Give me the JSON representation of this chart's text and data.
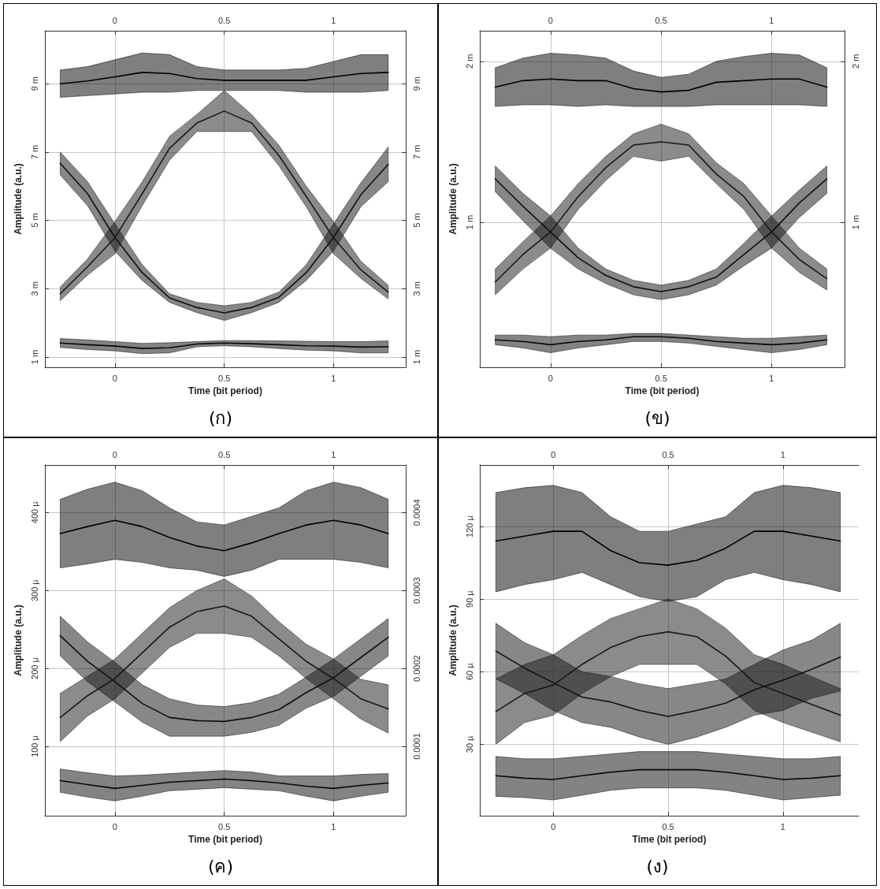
{
  "chart_data": [
    {
      "type": "line",
      "title": "(ก)",
      "xlabel": "Time (bit period)",
      "ylabel": "Amplitude (a.u.)",
      "grid": true,
      "marker": "none",
      "x": [
        -0.25,
        -0.125,
        0,
        0.125,
        0.25,
        0.375,
        0.5,
        0.625,
        0.75,
        0.875,
        1,
        1.125,
        1.25
      ],
      "xlim": [
        -0.32,
        1.33
      ],
      "xticks": [
        0,
        0.5,
        1
      ],
      "x2lim": [
        -0.32,
        1.33
      ],
      "x2ticks": [
        0,
        0.5,
        1
      ],
      "ylim": [
        0.7,
        10.55
      ],
      "yticks": [
        {
          "value": 1,
          "label": "1 m"
        },
        {
          "value": 3,
          "label": "3 m"
        },
        {
          "value": 5,
          "label": "5 m"
        },
        {
          "value": 7,
          "label": "7 m"
        },
        {
          "value": 9,
          "label": "9 m"
        }
      ],
      "y2lim": [
        0.7,
        10.55
      ],
      "y2ticks": [
        {
          "value": 1,
          "label": "1 m"
        },
        {
          "value": 3,
          "label": "3 m"
        },
        {
          "value": 5,
          "label": "5 m"
        },
        {
          "value": 7,
          "label": "7 m"
        },
        {
          "value": 9,
          "label": "9 m"
        }
      ],
      "series": [
        {
          "color": "#000000",
          "values": [
            9.0,
            9.08,
            9.2,
            9.33,
            9.3,
            9.15,
            9.1,
            9.1,
            9.1,
            9.1,
            9.2,
            9.3,
            9.33
          ],
          "lower": [
            8.6,
            8.65,
            8.7,
            8.75,
            8.75,
            8.8,
            8.8,
            8.8,
            8.8,
            8.75,
            8.75,
            8.75,
            8.8
          ],
          "upper": [
            9.4,
            9.5,
            9.7,
            9.9,
            9.85,
            9.5,
            9.4,
            9.4,
            9.4,
            9.45,
            9.65,
            9.85,
            9.85
          ]
        },
        {
          "color": "#080808",
          "values": [
            1.41,
            1.36,
            1.32,
            1.25,
            1.27,
            1.38,
            1.41,
            1.39,
            1.36,
            1.33,
            1.32,
            1.29,
            1.3
          ],
          "lower": [
            1.28,
            1.22,
            1.18,
            1.1,
            1.12,
            1.3,
            1.33,
            1.3,
            1.25,
            1.2,
            1.18,
            1.12,
            1.12
          ],
          "upper": [
            1.54,
            1.5,
            1.45,
            1.4,
            1.42,
            1.45,
            1.48,
            1.48,
            1.47,
            1.46,
            1.45,
            1.45,
            1.47
          ]
        },
        {
          "color": "#101010",
          "values": [
            6.67,
            5.78,
            4.5,
            3.47,
            2.73,
            2.45,
            2.29,
            2.45,
            2.75,
            3.47,
            4.5,
            5.75,
            6.64
          ],
          "lower": [
            6.33,
            5.43,
            4.1,
            3.24,
            2.6,
            2.3,
            2.07,
            2.3,
            2.6,
            3.24,
            4.1,
            5.4,
            6.13
          ],
          "upper": [
            7.0,
            6.13,
            4.9,
            3.7,
            2.85,
            2.6,
            2.5,
            2.6,
            2.9,
            3.7,
            4.9,
            6.1,
            7.15
          ]
        },
        {
          "color": "#181818",
          "values": [
            2.85,
            3.64,
            4.49,
            5.78,
            7.11,
            7.85,
            8.2,
            7.85,
            6.9,
            5.7,
            4.49,
            3.55,
            2.9
          ],
          "lower": [
            2.65,
            3.4,
            4.02,
            5.43,
            6.76,
            7.6,
            7.6,
            7.6,
            6.6,
            5.4,
            4.02,
            3.3,
            2.7
          ],
          "upper": [
            3.05,
            3.87,
            4.96,
            6.13,
            7.46,
            8.1,
            8.8,
            8.1,
            7.2,
            6.0,
            4.96,
            3.8,
            3.1
          ]
        }
      ]
    },
    {
      "type": "line",
      "title": "(ข)",
      "xlabel": "Time (bit period)",
      "ylabel": "Amplitude (a.u.)",
      "grid": true,
      "marker": "none",
      "x": [
        -0.25,
        -0.125,
        0,
        0.125,
        0.25,
        0.375,
        0.5,
        0.625,
        0.75,
        0.875,
        1,
        1.125,
        1.25
      ],
      "xlim": [
        -0.32,
        1.33
      ],
      "xticks": [
        0,
        0.5,
        1
      ],
      "x2lim": [
        -0.32,
        1.33
      ],
      "x2ticks": [
        0,
        0.5,
        1
      ],
      "ylim": [
        0.1,
        2.19
      ],
      "yticks": [
        {
          "value": 1,
          "label": "1 m"
        },
        {
          "value": 2,
          "label": "2 m"
        }
      ],
      "y2lim": [
        0.1,
        2.19
      ],
      "y2ticks": [
        {
          "value": 1,
          "label": "1 m"
        },
        {
          "value": 2,
          "label": "2 m"
        }
      ],
      "series": [
        {
          "color": "#000000",
          "values": [
            1.84,
            1.88,
            1.89,
            1.88,
            1.88,
            1.83,
            1.81,
            1.82,
            1.87,
            1.88,
            1.89,
            1.89,
            1.84
          ],
          "lower": [
            1.72,
            1.73,
            1.73,
            1.72,
            1.73,
            1.72,
            1.72,
            1.72,
            1.73,
            1.73,
            1.73,
            1.73,
            1.72
          ],
          "upper": [
            1.96,
            2.02,
            2.05,
            2.04,
            2.02,
            1.94,
            1.9,
            1.92,
            2.0,
            2.03,
            2.05,
            2.04,
            1.96
          ]
        },
        {
          "color": "#080808",
          "values": [
            0.27,
            0.26,
            0.24,
            0.26,
            0.27,
            0.29,
            0.29,
            0.28,
            0.26,
            0.25,
            0.24,
            0.25,
            0.27
          ],
          "lower": [
            0.24,
            0.22,
            0.19,
            0.22,
            0.24,
            0.26,
            0.26,
            0.25,
            0.23,
            0.21,
            0.19,
            0.21,
            0.24
          ],
          "upper": [
            0.3,
            0.3,
            0.29,
            0.3,
            0.3,
            0.31,
            0.31,
            0.3,
            0.29,
            0.28,
            0.28,
            0.29,
            0.3
          ]
        },
        {
          "color": "#101010",
          "values": [
            1.27,
            1.1,
            0.94,
            0.78,
            0.67,
            0.6,
            0.57,
            0.6,
            0.66,
            0.8,
            0.94,
            1.12,
            1.27
          ],
          "lower": [
            1.19,
            1.01,
            0.84,
            0.71,
            0.62,
            0.55,
            0.52,
            0.55,
            0.61,
            0.73,
            0.84,
            1.03,
            1.18
          ],
          "upper": [
            1.35,
            1.18,
            1.04,
            0.84,
            0.71,
            0.64,
            0.61,
            0.64,
            0.71,
            0.87,
            1.04,
            1.2,
            1.35
          ]
        },
        {
          "color": "#181818",
          "values": [
            0.63,
            0.8,
            0.94,
            1.16,
            1.34,
            1.48,
            1.5,
            1.48,
            1.3,
            1.16,
            0.94,
            0.77,
            0.65
          ],
          "lower": [
            0.55,
            0.71,
            0.84,
            1.08,
            1.26,
            1.41,
            1.38,
            1.41,
            1.24,
            1.08,
            0.84,
            0.69,
            0.58
          ],
          "upper": [
            0.71,
            0.88,
            1.04,
            1.24,
            1.41,
            1.55,
            1.61,
            1.55,
            1.37,
            1.24,
            1.04,
            0.84,
            0.71
          ]
        }
      ]
    },
    {
      "type": "line",
      "title": "(ค)",
      "xlabel": "Time (bit period)",
      "ylabel": "Amplitude (a.u.)",
      "grid": true,
      "marker": "none",
      "x": [
        -0.25,
        -0.125,
        0,
        0.125,
        0.25,
        0.375,
        0.5,
        0.625,
        0.75,
        0.875,
        1,
        1.125,
        1.25
      ],
      "xlim": [
        -0.32,
        1.33
      ],
      "xticks": [
        0,
        0.5,
        1
      ],
      "x2lim": [
        -0.32,
        1.33
      ],
      "x2ticks": [
        0,
        0.5,
        1
      ],
      "ylim": [
        11,
        461
      ],
      "yticks": [
        {
          "value": 100,
          "label": "100 µ"
        },
        {
          "value": 200,
          "label": "200 µ"
        },
        {
          "value": 300,
          "label": "300 µ"
        },
        {
          "value": 400,
          "label": "400 µ"
        }
      ],
      "y2lim": [
        1.1e-05,
        0.000461
      ],
      "y2ticks": [
        0.0001,
        0.0002,
        0.0003,
        0.0004
      ],
      "series": [
        {
          "color": "#000000",
          "values": [
            373,
            382,
            390,
            382,
            368,
            357,
            351,
            361,
            373,
            384,
            390,
            384,
            373
          ],
          "lower": [
            329,
            334,
            340,
            336,
            329,
            326,
            318,
            326,
            340,
            340,
            340,
            336,
            329
          ],
          "upper": [
            417,
            430,
            439,
            428,
            406,
            388,
            384,
            395,
            406,
            428,
            439,
            432,
            417
          ]
        },
        {
          "color": "#080808",
          "values": [
            56,
            51,
            46,
            50,
            54,
            56,
            58,
            56,
            53,
            49,
            46,
            50,
            53
          ],
          "lower": [
            41,
            35,
            30,
            36,
            43,
            45,
            47,
            45,
            43,
            36,
            30,
            36,
            41
          ],
          "upper": [
            71,
            66,
            62,
            63,
            65,
            67,
            69,
            67,
            62,
            62,
            62,
            64,
            65
          ]
        },
        {
          "color": "#101010",
          "values": [
            242,
            209,
            183,
            155,
            137,
            133,
            132,
            137,
            147,
            169,
            188,
            214,
            240
          ],
          "lower": [
            216,
            183,
            157,
            131,
            113,
            113,
            113,
            118,
            127,
            149,
            164,
            190,
            216
          ],
          "upper": [
            267,
            234,
            208,
            179,
            161,
            153,
            151,
            156,
            167,
            189,
            212,
            238,
            264
          ]
        },
        {
          "color": "#181818",
          "values": [
            137,
            165,
            187,
            220,
            253,
            273,
            280,
            267,
            238,
            209,
            187,
            161,
            148
          ],
          "lower": [
            106,
            139,
            161,
            194,
            227,
            245,
            245,
            240,
            216,
            187,
            161,
            135,
            117
          ],
          "upper": [
            168,
            190,
            212,
            245,
            278,
            300,
            315,
            293,
            260,
            231,
            212,
            186,
            179
          ]
        }
      ]
    },
    {
      "type": "line",
      "title": "(ง)",
      "xlabel": "Time (bit period)",
      "ylabel": "Amplitude (a.u.)",
      "grid": true,
      "marker": "none",
      "x": [
        -0.25,
        -0.125,
        0,
        0.125,
        0.25,
        0.375,
        0.5,
        0.625,
        0.75,
        0.875,
        1,
        1.125,
        1.25
      ],
      "xlim": [
        -0.32,
        1.33
      ],
      "xticks": [
        0,
        0.5,
        1
      ],
      "x2lim": [
        -0.32,
        1.33
      ],
      "x2ticks": [
        0,
        0.5,
        1
      ],
      "ylim": [
        0.5,
        145.4
      ],
      "yticks": [
        {
          "value": 30,
          "label": "30 µ"
        },
        {
          "value": 60,
          "label": "60 µ"
        },
        {
          "value": 90,
          "label": "90 µ"
        },
        {
          "value": 120,
          "label": "120 µ"
        }
      ],
      "series": [
        {
          "color": "#000000",
          "values": [
            114,
            116,
            118,
            118,
            110,
            105,
            104,
            106,
            111,
            118,
            118,
            116,
            114
          ],
          "lower": [
            93,
            96,
            98,
            101,
            96,
            91,
            89,
            91,
            98,
            101,
            98,
            96,
            93
          ],
          "upper": [
            134,
            136,
            137,
            134,
            124,
            118,
            118,
            121,
            124,
            134,
            137,
            136,
            134
          ]
        },
        {
          "color": "#080808",
          "values": [
            17,
            16,
            15.5,
            17,
            18.5,
            19.5,
            19.5,
            19.5,
            18.5,
            17,
            15.5,
            16,
            17
          ],
          "lower": [
            8.5,
            8,
            7,
            9,
            11,
            12,
            12,
            12,
            11,
            9,
            7,
            8,
            9
          ],
          "upper": [
            25,
            24,
            24,
            25,
            26,
            27,
            27,
            27,
            26,
            25,
            24,
            24,
            25
          ]
        },
        {
          "color": "#101010",
          "values": [
            68.5,
            61.5,
            55.5,
            49.5,
            47.5,
            44,
            41.5,
            44,
            47,
            52.5,
            56.5,
            61,
            66
          ],
          "lower": [
            57,
            51,
            44,
            39,
            37,
            33,
            30,
            33,
            37,
            42,
            44,
            49,
            52
          ],
          "upper": [
            80,
            72,
            67,
            60,
            58,
            55,
            53,
            55,
            57,
            63,
            69,
            73,
            80
          ]
        },
        {
          "color": "#181818",
          "values": [
            43.5,
            51,
            54.5,
            63,
            70,
            74.5,
            76.5,
            74.5,
            66.5,
            55.5,
            51,
            46.5,
            42
          ],
          "lower": [
            30,
            39,
            42,
            51,
            58,
            63,
            63,
            63,
            55,
            44,
            39,
            35,
            31
          ],
          "upper": [
            57,
            63,
            67,
            75,
            82,
            86,
            90,
            86,
            78,
            67,
            63,
            58,
            53
          ]
        }
      ]
    }
  ]
}
